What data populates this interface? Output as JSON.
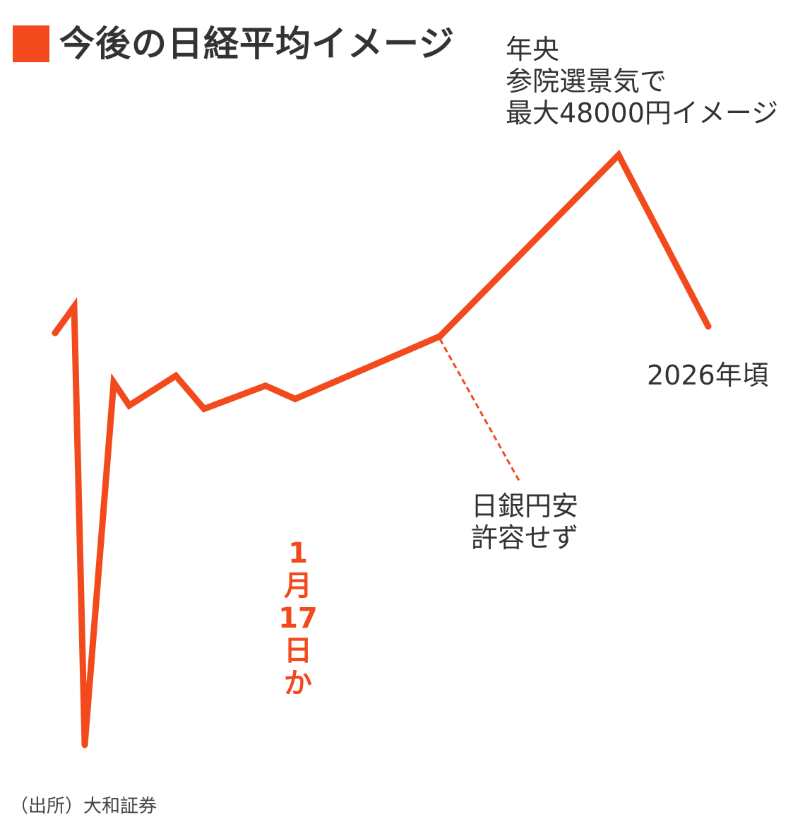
{
  "title": "今後の日経平均イメージ",
  "colors": {
    "accent": "#f24a1d",
    "text": "#333333",
    "background": "#ffffff"
  },
  "annotations": {
    "peak": [
      "年央",
      "参院選景気で",
      "最大48000円イメージ"
    ],
    "end": "2026年頃",
    "boj": [
      "日銀円安",
      "許容せず"
    ],
    "date_vertical": [
      "1",
      "月",
      "17",
      "日",
      "か"
    ]
  },
  "source": "（出所）大和証券",
  "chart_data": {
    "type": "line",
    "title": "今後の日経平均イメージ",
    "xlabel": "",
    "ylabel": "",
    "axes_visible": false,
    "grid": false,
    "x": [
      0,
      1,
      2,
      3,
      4,
      5,
      6,
      7,
      8,
      9,
      10,
      11
    ],
    "series": [
      {
        "values": [
          0.46,
          0.54,
          -0.79,
          0.31,
          0.24,
          0.33,
          0.23,
          0.3,
          0.26,
          0.45,
          1.0,
          0.48
        ]
      }
    ],
    "ylim": [
      -0.85,
      1.05
    ],
    "annotations": [
      {
        "text": "年央 参院選景気で 最大48000円イメージ",
        "index": 10
      },
      {
        "text": "1月17日か",
        "index": 8
      },
      {
        "text": "日銀円安 許容せず",
        "index": 9
      },
      {
        "text": "2026年頃",
        "index": 11
      }
    ]
  }
}
